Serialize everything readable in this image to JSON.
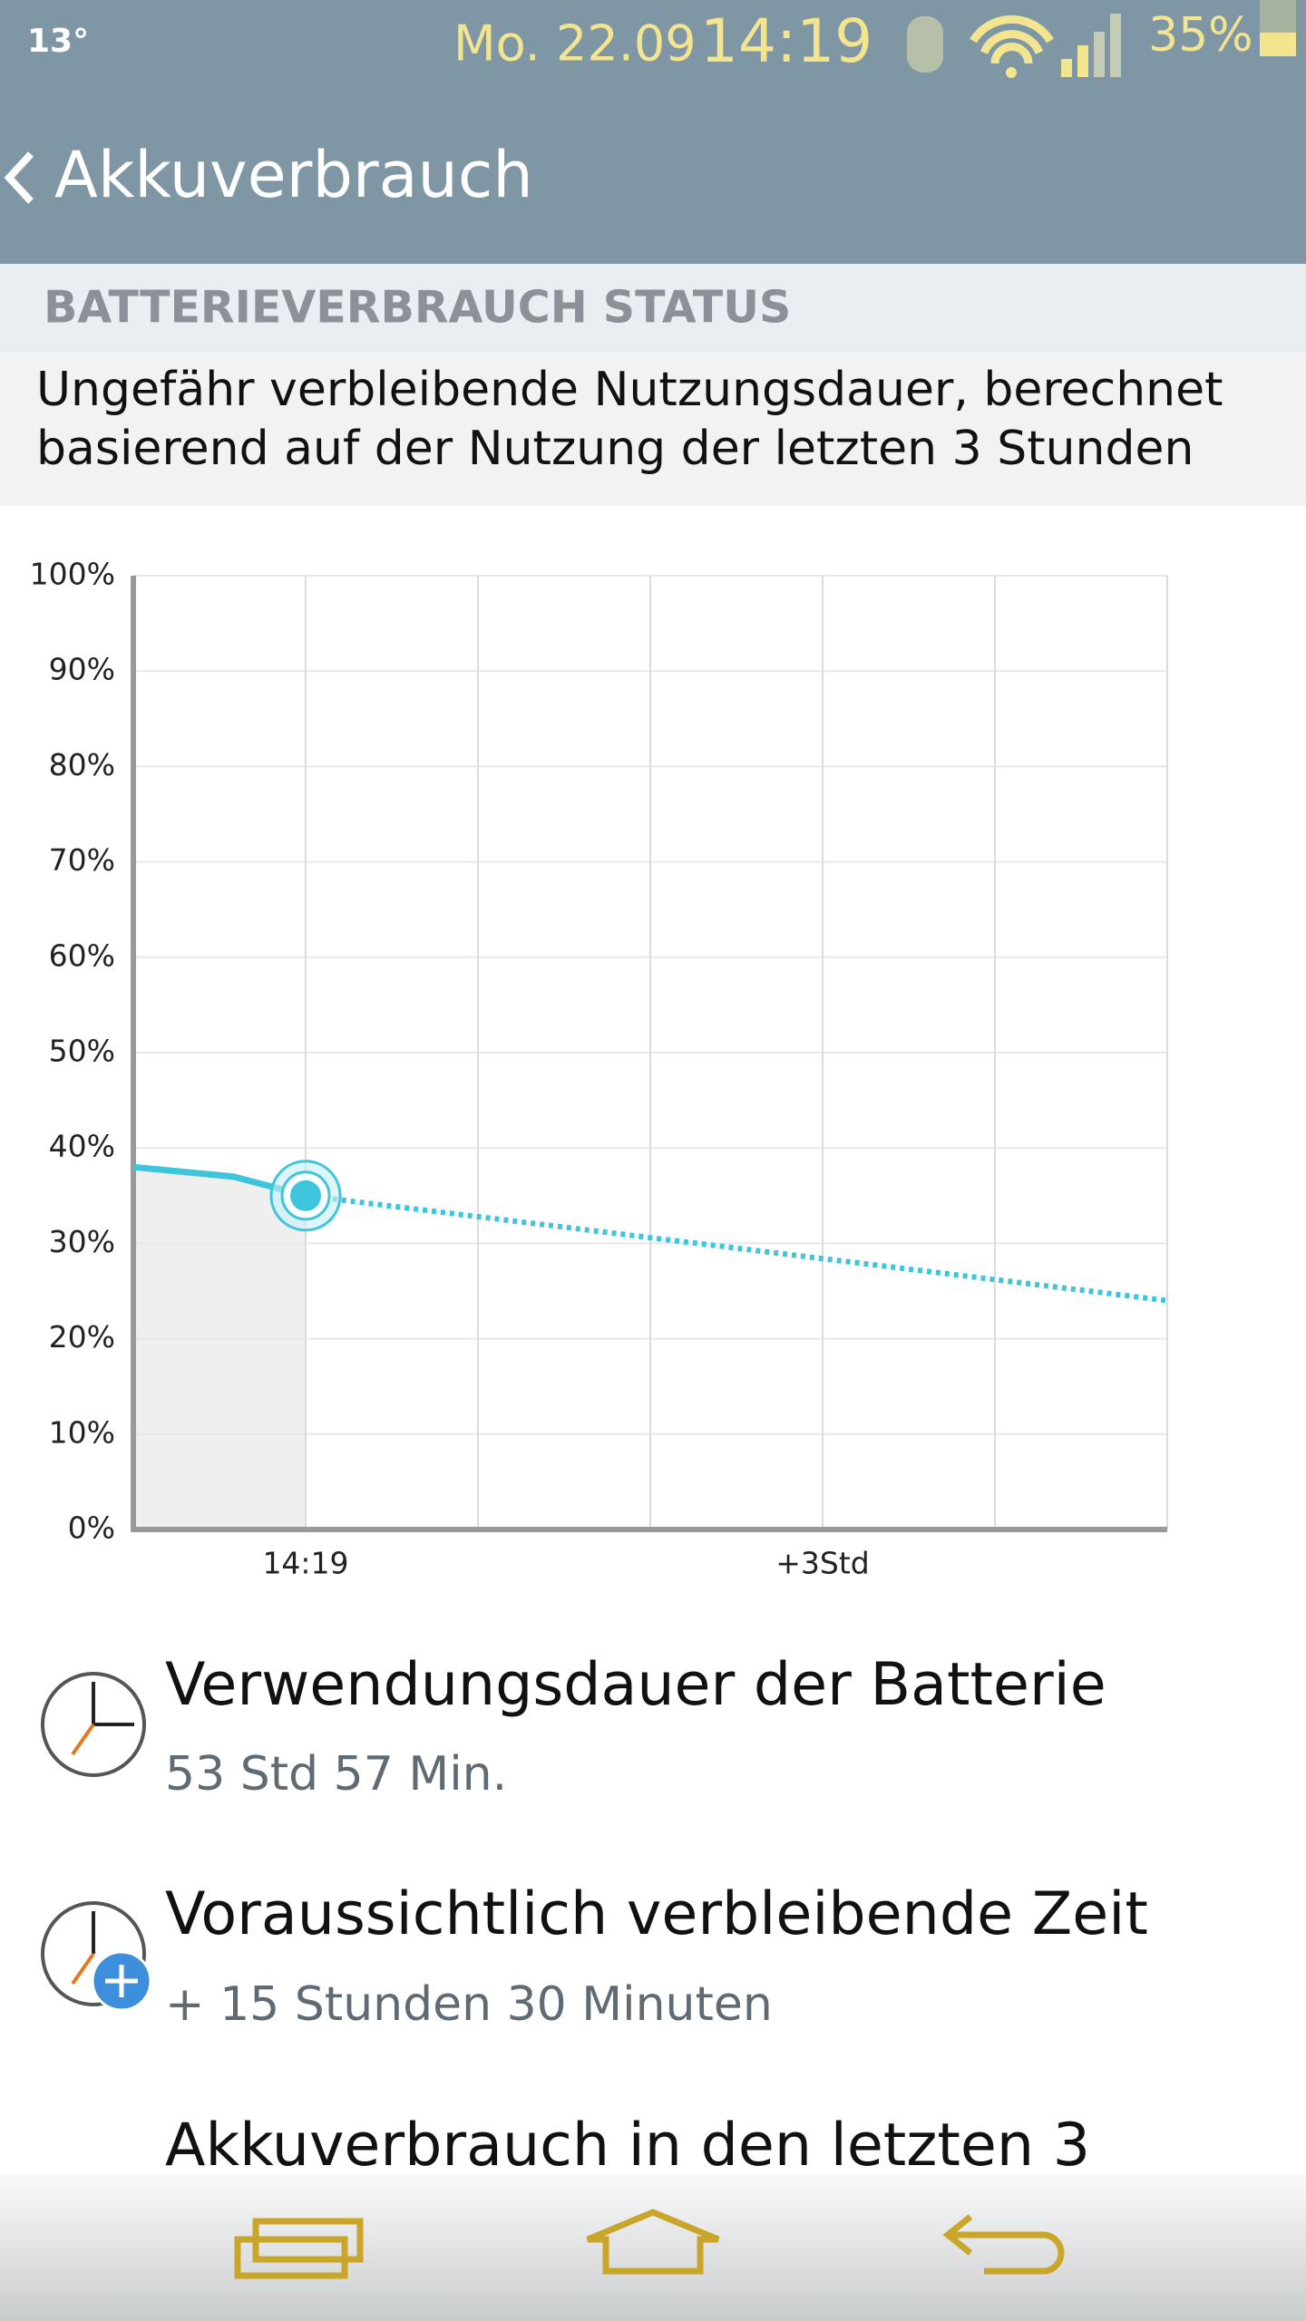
{
  "status_bar": {
    "temperature": "13°",
    "date": "Mo. 22.09",
    "time": "14:19",
    "battery": "35%"
  },
  "header": {
    "title": "Akkuverbrauch"
  },
  "section": {
    "title": "BATTERIEVERBRAUCH STATUS",
    "description": [
      "Ungefähr verbleibende Nutzungsdauer, berechnet",
      "basierend auf der Nutzung der letzten 3 Stunden"
    ]
  },
  "chart_data": {
    "type": "line",
    "xlim": [
      -1,
      5
    ],
    "ylim": [
      0,
      100
    ],
    "xticks": [
      {
        "value": 0,
        "label": "14:19"
      },
      {
        "value": 3,
        "label": "+3Std"
      }
    ],
    "xgrid": [
      1,
      2,
      4,
      5
    ],
    "yticks": [
      {
        "value": 0,
        "label": "0%"
      },
      {
        "value": 10,
        "label": "10%"
      },
      {
        "value": 20,
        "label": "20%"
      },
      {
        "value": 30,
        "label": "30%"
      },
      {
        "value": 40,
        "label": "40%"
      },
      {
        "value": 50,
        "label": "50%"
      },
      {
        "value": 60,
        "label": "60%"
      },
      {
        "value": 70,
        "label": "70%"
      },
      {
        "value": 80,
        "label": "80%"
      },
      {
        "value": 90,
        "label": "90%"
      },
      {
        "value": 100,
        "label": "100%"
      }
    ],
    "grid": true,
    "series": [
      {
        "color": "#3ec5dc",
        "dashed": false,
        "area_fill": "#efefef",
        "current_marker": true,
        "x": [
          -1,
          -0.42,
          0
        ],
        "values": [
          38,
          37,
          35
        ]
      },
      {
        "color": "#3ec5dc",
        "dashed": true,
        "x": [
          0,
          5
        ],
        "values": [
          35,
          24
        ]
      }
    ]
  },
  "items": [
    {
      "title": "Verwendungsdauer der Batterie",
      "subtitle": "53 Std 57 Min."
    },
    {
      "title": "Voraussichtlich verbleibende Zeit",
      "subtitle": "+ 15 Stunden 30 Minuten"
    },
    {
      "title": "Akkuverbrauch in den letzten 3"
    }
  ]
}
